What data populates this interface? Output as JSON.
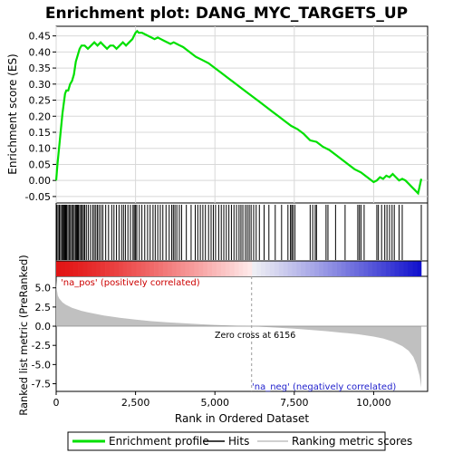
{
  "chart_data": {
    "type": "line",
    "title": "Enrichment plot: DANG_MYC_TARGETS_UP",
    "xlabel": "Rank in Ordered Dataset",
    "top_panel": {
      "ylabel": "Enrichment score (ES)",
      "ylim": [
        -0.07,
        0.48
      ],
      "yticks": [
        "0.45",
        "0.40",
        "0.35",
        "0.30",
        "0.25",
        "0.20",
        "0.15",
        "0.10",
        "0.05",
        "0.00",
        "-0.05"
      ],
      "ytick_values": [
        0.45,
        0.4,
        0.35,
        0.3,
        0.25,
        0.2,
        0.15,
        0.1,
        0.05,
        0.0,
        -0.05
      ],
      "series": [
        {
          "name": "Enrichment profile",
          "color": "#00e000",
          "x": [
            0,
            40,
            80,
            120,
            160,
            200,
            240,
            280,
            320,
            380,
            440,
            500,
            560,
            620,
            680,
            740,
            800,
            900,
            1000,
            1100,
            1200,
            1300,
            1400,
            1500,
            1600,
            1700,
            1800,
            1900,
            2000,
            2100,
            2200,
            2300,
            2400,
            2500,
            2550,
            2600,
            2700,
            2800,
            2900,
            3000,
            3100,
            3200,
            3300,
            3400,
            3500,
            3600,
            3700,
            3800,
            3900,
            4000,
            4200,
            4400,
            4600,
            4800,
            5000,
            5200,
            5400,
            5600,
            5800,
            6000,
            6200,
            6400,
            6600,
            6800,
            7000,
            7200,
            7400,
            7600,
            7800,
            8000,
            8200,
            8400,
            8600,
            8800,
            9000,
            9200,
            9400,
            9600,
            9800,
            10000,
            10100,
            10200,
            10300,
            10400,
            10500,
            10600,
            10700,
            10800,
            10900,
            11000,
            11100,
            11200,
            11300,
            11400,
            11500
          ],
          "y": [
            0.0,
            0.05,
            0.09,
            0.13,
            0.17,
            0.21,
            0.24,
            0.27,
            0.28,
            0.28,
            0.3,
            0.31,
            0.33,
            0.37,
            0.39,
            0.41,
            0.42,
            0.42,
            0.41,
            0.42,
            0.43,
            0.42,
            0.43,
            0.42,
            0.41,
            0.42,
            0.42,
            0.41,
            0.42,
            0.43,
            0.42,
            0.43,
            0.44,
            0.46,
            0.465,
            0.46,
            0.46,
            0.455,
            0.45,
            0.445,
            0.44,
            0.445,
            0.44,
            0.435,
            0.43,
            0.425,
            0.43,
            0.425,
            0.42,
            0.415,
            0.4,
            0.385,
            0.375,
            0.365,
            0.35,
            0.335,
            0.32,
            0.305,
            0.29,
            0.275,
            0.26,
            0.245,
            0.23,
            0.215,
            0.2,
            0.185,
            0.17,
            0.16,
            0.145,
            0.125,
            0.12,
            0.105,
            0.095,
            0.08,
            0.065,
            0.05,
            0.035,
            0.025,
            0.01,
            -0.005,
            0.0,
            0.01,
            0.005,
            0.015,
            0.01,
            0.02,
            0.01,
            0.0,
            0.005,
            0.0,
            -0.01,
            -0.02,
            -0.03,
            -0.04,
            0.005
          ]
        }
      ]
    },
    "hits_panel": {
      "hit_ranks": [
        20,
        60,
        100,
        140,
        180,
        210,
        240,
        270,
        300,
        330,
        370,
        410,
        450,
        490,
        530,
        570,
        610,
        640,
        670,
        700,
        740,
        780,
        820,
        860,
        900,
        950,
        1010,
        1080,
        1150,
        1200,
        1250,
        1300,
        1350,
        1410,
        1470,
        1560,
        1650,
        1750,
        1820,
        1900,
        1980,
        2060,
        2120,
        2180,
        2260,
        2340,
        2420,
        2460,
        2500,
        2540,
        2620,
        2700,
        2790,
        2880,
        2960,
        3050,
        3120,
        3200,
        3280,
        3360,
        3460,
        3560,
        3640,
        3690,
        3740,
        3800,
        3880,
        3950,
        4100,
        4250,
        4380,
        4460,
        4540,
        4620,
        4700,
        4800,
        4880,
        4950,
        5020,
        5120,
        5200,
        5280,
        5360,
        5440,
        5520,
        5600,
        5680,
        5760,
        5820,
        5880,
        5960,
        6020,
        6080,
        6140,
        6220,
        6300,
        6400,
        6550,
        6700,
        6900,
        7100,
        7300,
        7380,
        7420,
        7460,
        7520,
        8000,
        8080,
        8160,
        8200,
        8500,
        8560,
        8800,
        9100,
        9500,
        9550,
        9600,
        9700,
        10100,
        10150,
        10250,
        10350,
        10420,
        10500,
        10580,
        10650,
        10800,
        10900,
        11500
      ],
      "color_bar_regions": [
        "positive (red)",
        "neutral (white)",
        "negative (blue)"
      ]
    },
    "metric_panel": {
      "ylabel": "Ranked list metric (PreRanked)",
      "ylim": [
        -8.5,
        6.5
      ],
      "yticks": [
        "5.0",
        "2.5",
        "0.0",
        "-2.5",
        "-5.0",
        "-7.5"
      ],
      "ytick_values": [
        5.0,
        2.5,
        0.0,
        -2.5,
        -5.0,
        -7.5
      ],
      "series": [
        {
          "name": "Ranking metric scores",
          "color": "#c0c0c0",
          "x": [
            0,
            20,
            50,
            100,
            200,
            300,
            500,
            800,
            1000,
            1500,
            2000,
            2500,
            3000,
            3500,
            4000,
            4500,
            5000,
            5500,
            6000,
            6156,
            6500,
            7000,
            7500,
            8000,
            8500,
            9000,
            9500,
            10000,
            10300,
            10600,
            10900,
            11100,
            11250,
            11350,
            11450,
            11500
          ],
          "y": [
            6.0,
            4.8,
            4.0,
            3.6,
            3.1,
            2.8,
            2.4,
            2.0,
            1.8,
            1.4,
            1.1,
            0.85,
            0.65,
            0.5,
            0.38,
            0.27,
            0.17,
            0.09,
            0.02,
            0.0,
            -0.08,
            -0.2,
            -0.33,
            -0.48,
            -0.65,
            -0.85,
            -1.05,
            -1.35,
            -1.6,
            -2.0,
            -2.6,
            -3.2,
            -4.0,
            -5.0,
            -6.5,
            -8.0
          ]
        }
      ],
      "annotations": {
        "zero_cross": "Zero cross at 6156",
        "positive_label": "'na_pos' (positively correlated)",
        "negative_label": "'na_neg' (negatively correlated)"
      }
    },
    "xlim": [
      0,
      11700
    ],
    "xticks": [
      "0",
      "2,500",
      "5,000",
      "7,500",
      "10,000"
    ],
    "xtick_values": [
      0,
      2500,
      5000,
      7500,
      10000
    ],
    "zero_cross_rank": 6156,
    "legend": {
      "placement": "bottom",
      "entries": [
        "Enrichment profile",
        "Hits",
        "Ranking metric scores"
      ],
      "colors": [
        "#00e000",
        "#000000",
        "#c0c0c0"
      ]
    }
  }
}
